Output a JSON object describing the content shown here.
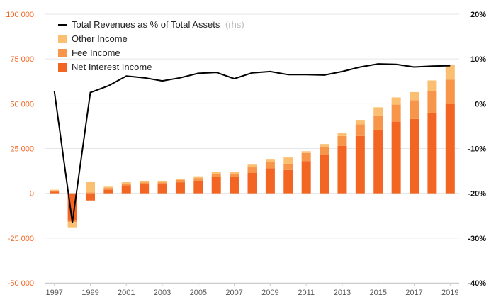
{
  "chart_data": {
    "type": "bar",
    "title": "",
    "xlabel": "",
    "ylabel": "",
    "years": [
      1997,
      1998,
      1999,
      2000,
      2001,
      2002,
      2003,
      2004,
      2005,
      2006,
      2007,
      2008,
      2009,
      2010,
      2011,
      2012,
      2013,
      2014,
      2015,
      2016,
      2017,
      2018,
      2019
    ],
    "x_tick_labels": [
      "1997",
      "1999",
      "2001",
      "2003",
      "2005",
      "2007",
      "2009",
      "2011",
      "2013",
      "2015",
      "2017",
      "2019"
    ],
    "ylim_left": [
      -50000,
      100000
    ],
    "left_tick_labels": [
      "100 000",
      "75 000",
      "50 000",
      "25 000",
      "0",
      "-25 000",
      "-50 000"
    ],
    "left_tick_values": [
      100000,
      75000,
      50000,
      25000,
      0,
      -25000,
      -50000
    ],
    "ylim_right": [
      -40,
      20
    ],
    "right_tick_labels": [
      "20%",
      "10%",
      "0%",
      "-10%",
      "-20%",
      "-30%",
      "-40%"
    ],
    "right_tick_values": [
      20,
      10,
      0,
      -10,
      -20,
      -30,
      -40
    ],
    "grid": true,
    "legend_position": "top-left",
    "series": [
      {
        "name": "Net Interest Income",
        "kind": "bar",
        "color": "#f26522",
        "values": [
          1000,
          -15000,
          -4000,
          2000,
          4500,
          5000,
          5000,
          6000,
          7000,
          9000,
          9000,
          11500,
          14000,
          13000,
          18000,
          21500,
          26500,
          32000,
          35500,
          40000,
          41500,
          45000,
          50000
        ]
      },
      {
        "name": "Fee Income",
        "kind": "bar",
        "color": "#f7964b",
        "values": [
          500,
          -1000,
          500,
          1000,
          1000,
          1000,
          1000,
          1500,
          1500,
          2000,
          2000,
          3000,
          3500,
          3500,
          4500,
          4500,
          5500,
          6500,
          8000,
          9500,
          10500,
          12000,
          13500
        ]
      },
      {
        "name": "Other Income",
        "kind": "bar",
        "color": "#fbbf72",
        "values": [
          500,
          -3000,
          6000,
          700,
          1000,
          1000,
          1000,
          700,
          1000,
          1000,
          1000,
          1500,
          1700,
          3500,
          1000,
          1500,
          1500,
          2500,
          4500,
          4000,
          4500,
          6000,
          8000
        ]
      },
      {
        "name": "Total Revenues as % of Total Assets",
        "name_suffix": "(rhs)",
        "kind": "line",
        "axis": "right",
        "color": "#000000",
        "values": [
          2.8,
          -26.5,
          2.5,
          4.0,
          6.2,
          5.8,
          5.1,
          5.8,
          6.8,
          7.0,
          5.6,
          6.9,
          7.2,
          6.5,
          6.5,
          6.4,
          7.2,
          8.2,
          8.9,
          8.8,
          8.2,
          8.4,
          8.5
        ]
      }
    ]
  }
}
